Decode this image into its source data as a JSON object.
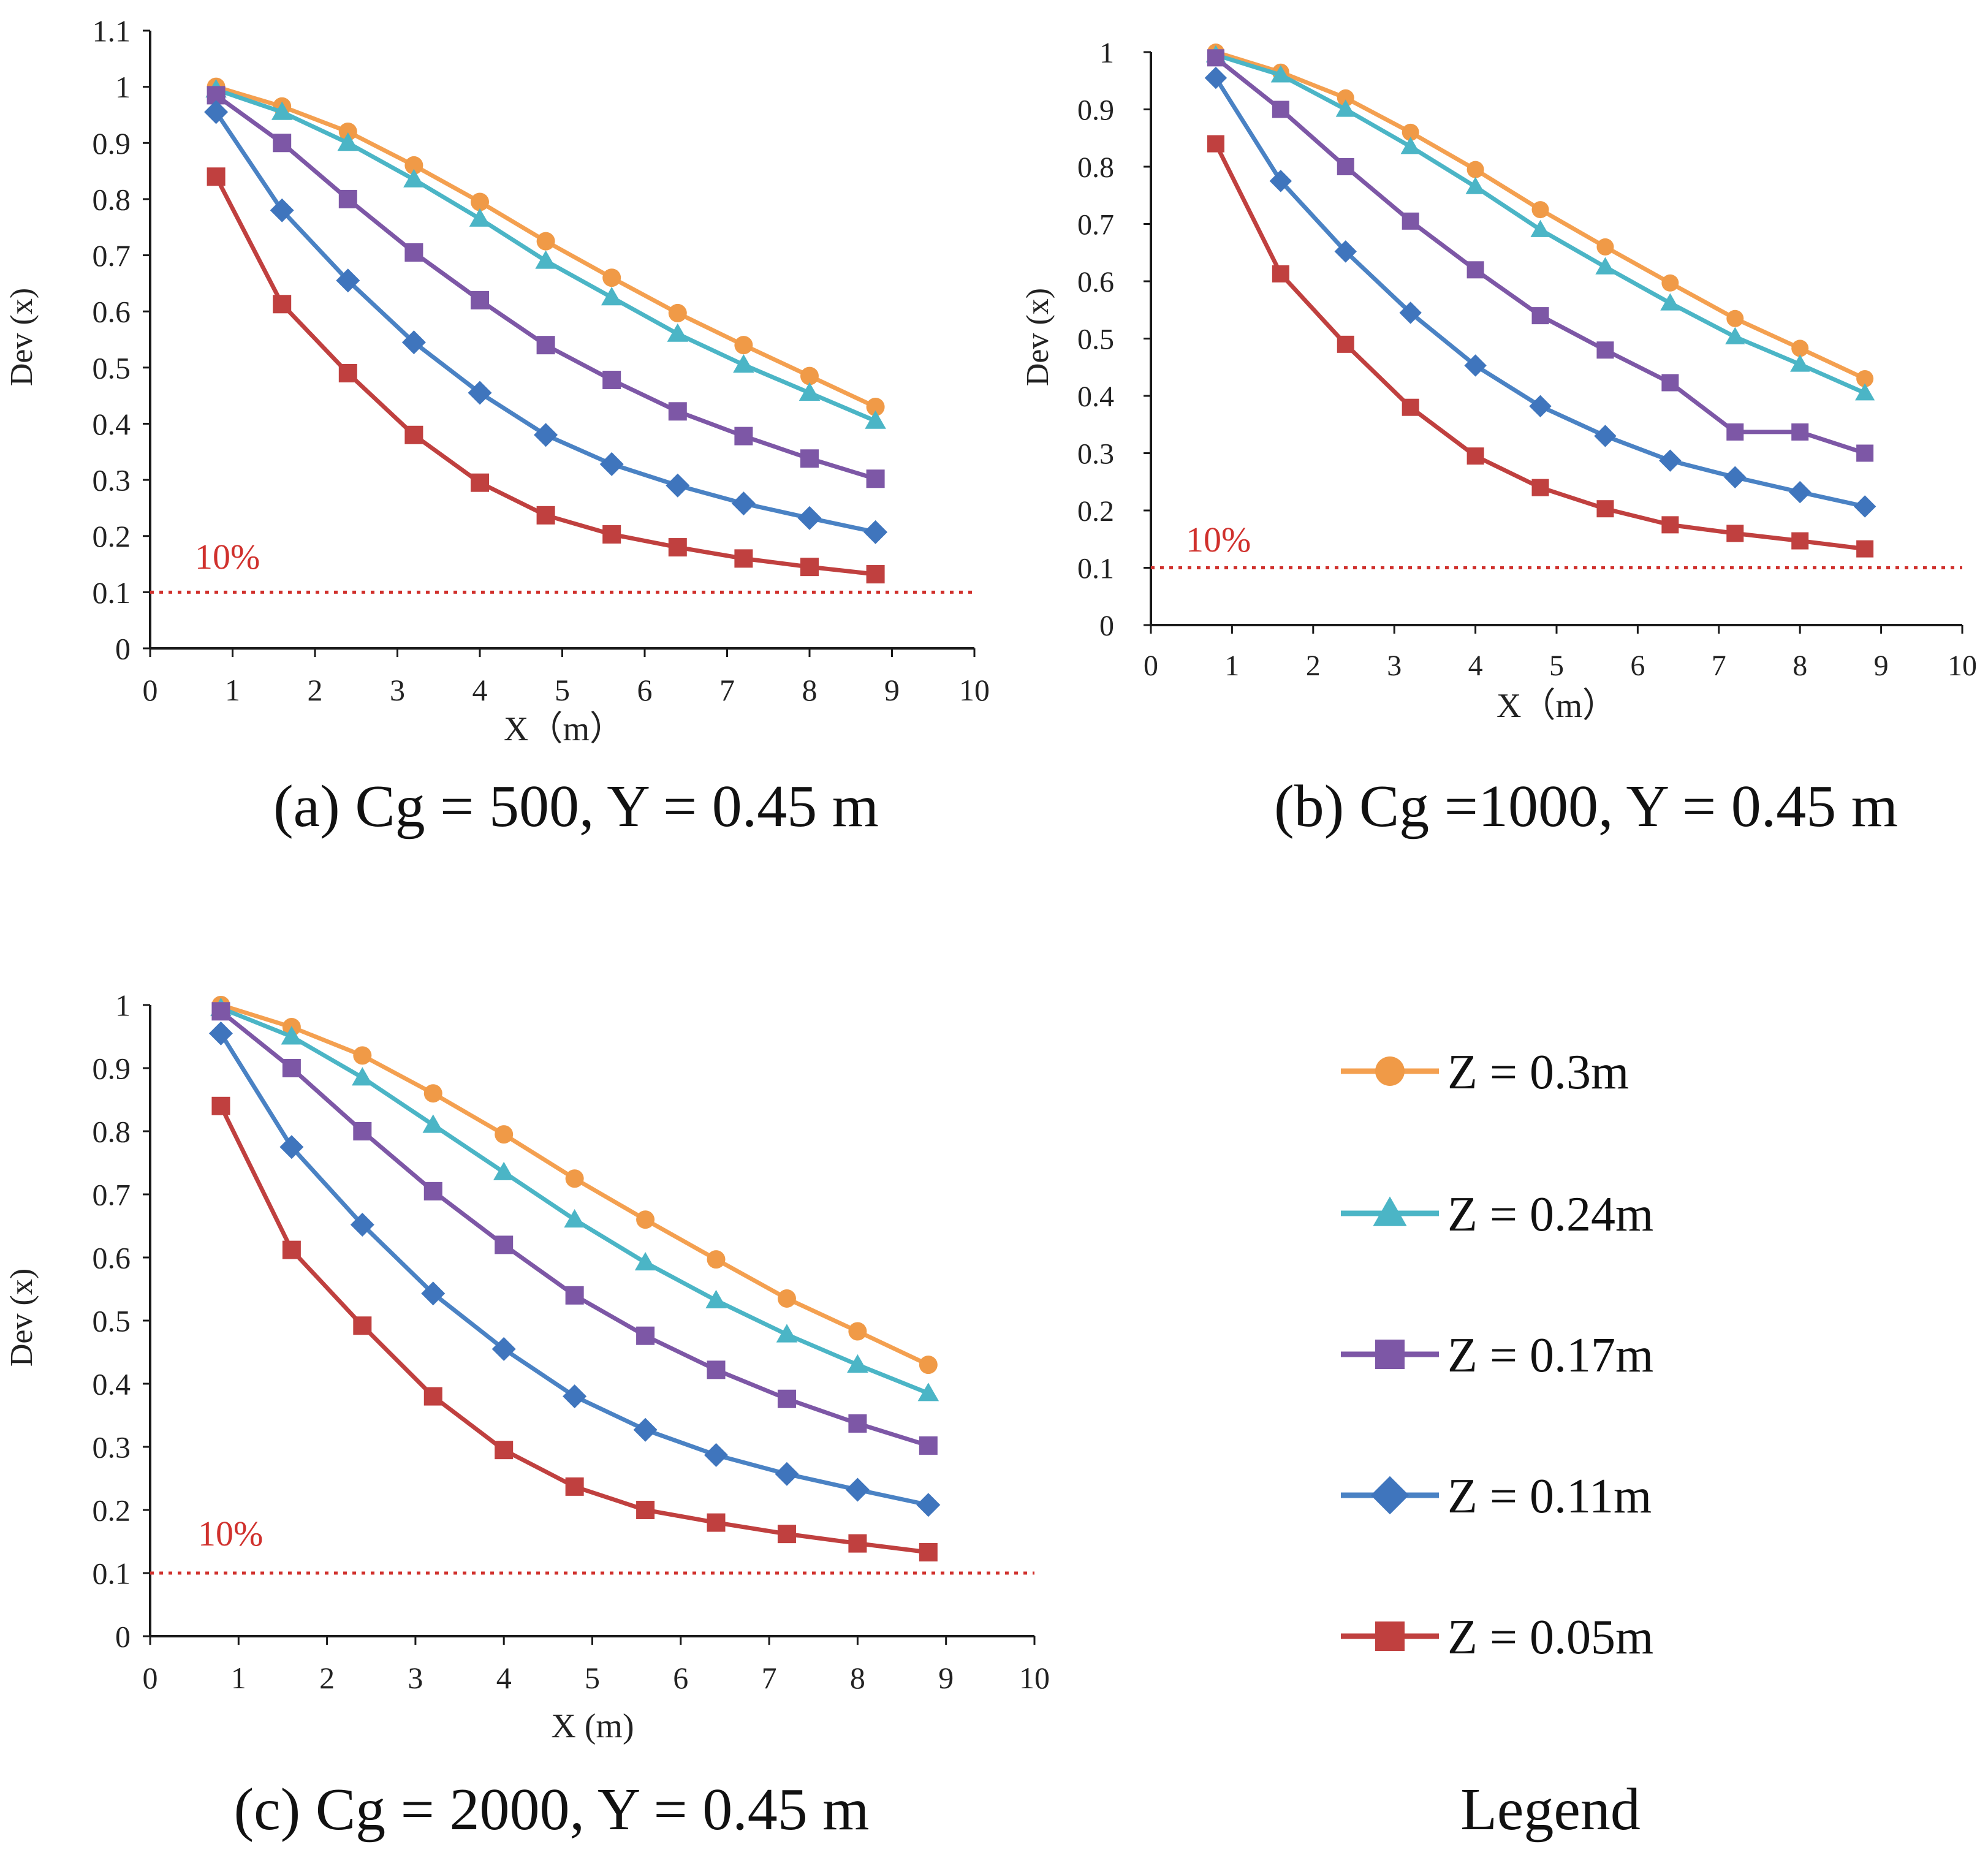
{
  "chart_data": [
    {
      "type": "line",
      "title": "(a) Cg = 500, Y = 0.45 m",
      "xlabel": "X（m）",
      "ylabel": "Dev (x)",
      "xlim": [
        0,
        10
      ],
      "ylim": [
        0,
        1.1
      ],
      "xticks": [
        "0",
        "1",
        "2",
        "3",
        "4",
        "5",
        "6",
        "7",
        "8",
        "9",
        "10"
      ],
      "yticks": [
        "0",
        "0.1",
        "0.2",
        "0.3",
        "0.4",
        "0.5",
        "0.6",
        "0.7",
        "0.8",
        "0.9",
        "1",
        "1.1"
      ],
      "reference": {
        "value": 0.1,
        "label": "10%"
      },
      "x": [
        0.8,
        1.6,
        2.4,
        3.2,
        4.0,
        4.8,
        5.6,
        6.4,
        7.2,
        8.0,
        8.8
      ],
      "series": [
        {
          "name": "Z = 0.3m",
          "values": [
            1.0,
            0.965,
            0.92,
            0.86,
            0.795,
            0.725,
            0.66,
            0.597,
            0.54,
            0.485,
            0.43
          ]
        },
        {
          "name": "Z = 0.24m",
          "values": [
            0.995,
            0.955,
            0.9,
            0.835,
            0.765,
            0.69,
            0.625,
            0.56,
            0.505,
            0.455,
            0.405
          ]
        },
        {
          "name": "Z = 0.17m",
          "values": [
            0.985,
            0.9,
            0.8,
            0.705,
            0.62,
            0.54,
            0.478,
            0.422,
            0.378,
            0.338,
            0.302
          ]
        },
        {
          "name": "Z = 0.11m",
          "values": [
            0.955,
            0.78,
            0.655,
            0.545,
            0.455,
            0.38,
            0.328,
            0.29,
            0.258,
            0.232,
            0.207
          ]
        },
        {
          "name": "Z = 0.05m",
          "values": [
            0.84,
            0.613,
            0.49,
            0.38,
            0.295,
            0.237,
            0.203,
            0.18,
            0.16,
            0.145,
            0.132
          ]
        }
      ]
    },
    {
      "type": "line",
      "title": "(b) Cg =1000, Y = 0.45 m",
      "xlabel": "X（m）",
      "ylabel": "Dev (x)",
      "xlim": [
        0,
        10
      ],
      "ylim": [
        0,
        1
      ],
      "xticks": [
        "0",
        "1",
        "2",
        "3",
        "4",
        "5",
        "6",
        "7",
        "8",
        "9",
        "10"
      ],
      "yticks": [
        "0",
        "0.1",
        "0.2",
        "0.3",
        "0.4",
        "0.5",
        "0.6",
        "0.7",
        "0.8",
        "0.9",
        "1"
      ],
      "reference": {
        "value": 0.1,
        "label": "10%"
      },
      "x": [
        0.8,
        1.6,
        2.4,
        3.2,
        4.0,
        4.8,
        5.6,
        6.4,
        7.2,
        8.0,
        8.8
      ],
      "series": [
        {
          "name": "Z = 0.3m",
          "values": [
            1.0,
            0.965,
            0.92,
            0.86,
            0.795,
            0.725,
            0.66,
            0.597,
            0.535,
            0.483,
            0.43
          ]
        },
        {
          "name": "Z = 0.24m",
          "values": [
            0.995,
            0.96,
            0.9,
            0.835,
            0.765,
            0.69,
            0.625,
            0.562,
            0.503,
            0.455,
            0.405
          ]
        },
        {
          "name": "Z = 0.17m",
          "values": [
            0.99,
            0.9,
            0.8,
            0.705,
            0.62,
            0.54,
            0.48,
            0.423,
            0.337,
            0.337,
            0.3
          ]
        },
        {
          "name": "Z = 0.11m",
          "values": [
            0.955,
            0.775,
            0.652,
            0.545,
            0.453,
            0.382,
            0.33,
            0.287,
            0.258,
            0.232,
            0.207
          ]
        },
        {
          "name": "Z = 0.05m",
          "values": [
            0.84,
            0.613,
            0.49,
            0.38,
            0.295,
            0.24,
            0.203,
            0.175,
            0.16,
            0.147,
            0.133
          ]
        }
      ]
    },
    {
      "type": "line",
      "title": "(c) Cg = 2000, Y = 0.45 m",
      "xlabel": "X (m)",
      "ylabel": "Dev (x)",
      "xlim": [
        0,
        10
      ],
      "ylim": [
        0,
        1
      ],
      "xticks": [
        "0",
        "1",
        "2",
        "3",
        "4",
        "5",
        "6",
        "7",
        "8",
        "9",
        "10"
      ],
      "yticks": [
        "0",
        "0.1",
        "0.2",
        "0.3",
        "0.4",
        "0.5",
        "0.6",
        "0.7",
        "0.8",
        "0.9",
        "1"
      ],
      "reference": {
        "value": 0.1,
        "label": "10%"
      },
      "x": [
        0.8,
        1.6,
        2.4,
        3.2,
        4.0,
        4.8,
        5.6,
        6.4,
        7.2,
        8.0,
        8.8
      ],
      "series": [
        {
          "name": "Z = 0.3m",
          "values": [
            1.0,
            0.965,
            0.92,
            0.86,
            0.795,
            0.725,
            0.66,
            0.597,
            0.535,
            0.483,
            0.43
          ]
        },
        {
          "name": "Z = 0.24m",
          "values": [
            0.995,
            0.95,
            0.885,
            0.81,
            0.735,
            0.66,
            0.592,
            0.532,
            0.478,
            0.43,
            0.385
          ]
        },
        {
          "name": "Z = 0.17m",
          "values": [
            0.99,
            0.9,
            0.8,
            0.705,
            0.62,
            0.54,
            0.476,
            0.422,
            0.376,
            0.337,
            0.302
          ]
        },
        {
          "name": "Z = 0.11m",
          "values": [
            0.955,
            0.775,
            0.652,
            0.543,
            0.455,
            0.38,
            0.327,
            0.287,
            0.257,
            0.232,
            0.208
          ]
        },
        {
          "name": "Z = 0.05m",
          "values": [
            0.84,
            0.612,
            0.492,
            0.38,
            0.295,
            0.237,
            0.2,
            0.18,
            0.162,
            0.147,
            0.133
          ]
        }
      ]
    }
  ],
  "legend": {
    "title": "Legend",
    "items": [
      {
        "label": "Z = 0.3m",
        "marker": "circle",
        "color": "#F09A47",
        "line": "#F4A050"
      },
      {
        "label": "Z = 0.24m",
        "marker": "triangle",
        "color": "#4BB5C6",
        "line": "#4BB5C6"
      },
      {
        "label": "Z = 0.17m",
        "marker": "square",
        "color": "#7D57A6",
        "line": "#7D57A6"
      },
      {
        "label": "Z = 0.11m",
        "marker": "diamond",
        "color": "#3F75BD",
        "line": "#4A82C4"
      },
      {
        "label": "Z = 0.05m",
        "marker": "square",
        "color": "#C0403F",
        "line": "#C0403F"
      }
    ]
  },
  "colors": {
    "reference": "#D0312D",
    "axis": "#1a1a1a"
  }
}
